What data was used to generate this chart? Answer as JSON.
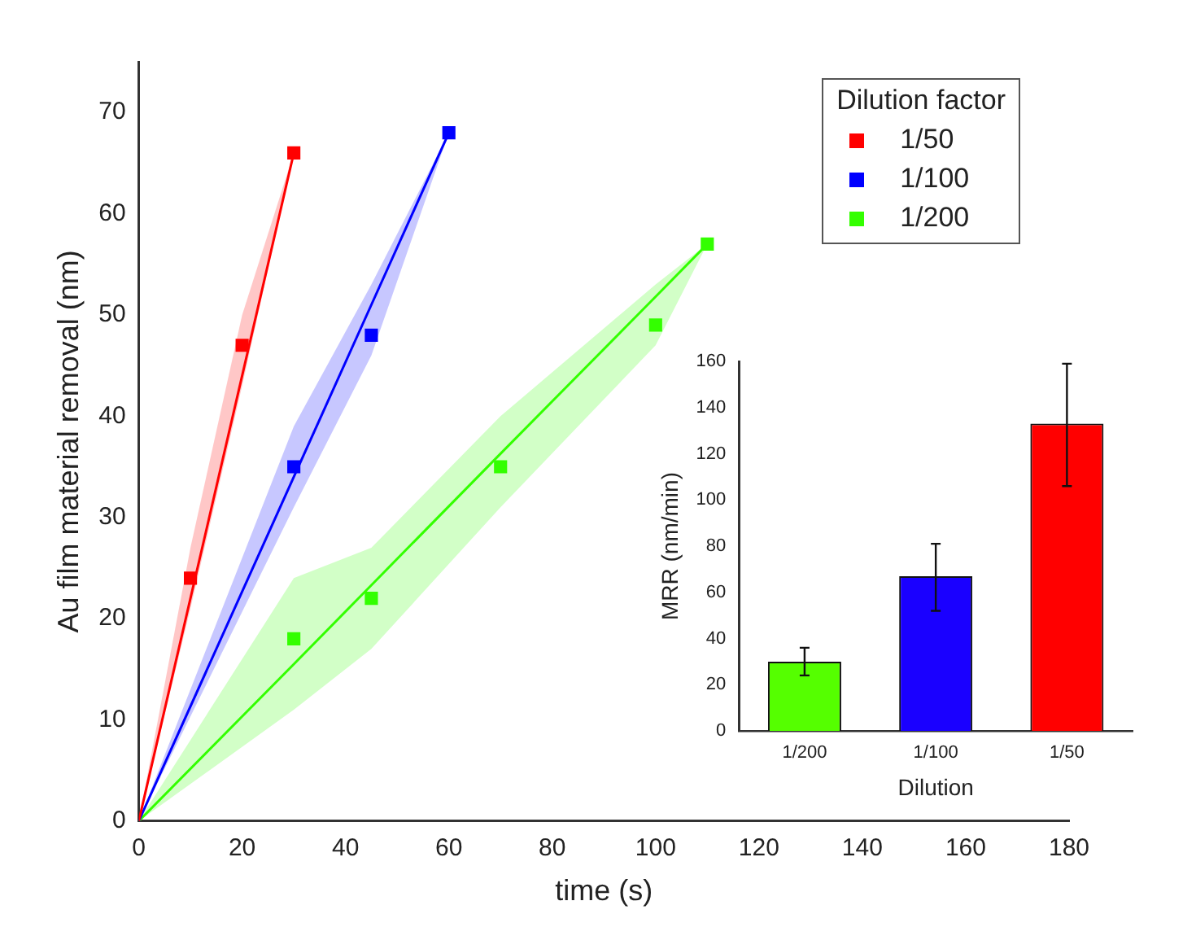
{
  "chart_data": [
    {
      "type": "scatter",
      "xlabel": "time (s)",
      "ylabel": "Au film material removal (nm)",
      "legend_title": "Dilution factor",
      "legend": "top right",
      "marker": "square",
      "grid": false,
      "xlim": [
        0,
        180
      ],
      "xticks": [
        0,
        20,
        40,
        60,
        80,
        100,
        120,
        140,
        160,
        180
      ],
      "ylim": [
        0,
        75
      ],
      "yticks": [
        0,
        10,
        20,
        30,
        40,
        50,
        60,
        70
      ],
      "series": [
        {
          "name": "1/50",
          "color": "#ff0000",
          "x": [
            10,
            20,
            30
          ],
          "values": [
            24,
            47,
            66
          ]
        },
        {
          "name": "1/100",
          "color": "#0000ff",
          "x": [
            30,
            45,
            60
          ],
          "values": [
            35,
            48,
            68
          ]
        },
        {
          "name": "1/200",
          "color": "#33ff00",
          "x": [
            30,
            45,
            70,
            100,
            110
          ],
          "values": [
            18,
            22,
            35,
            49,
            57
          ]
        },
        {
          "type": "line",
          "marker": "none",
          "color": "#ff0000",
          "x": [
            0,
            10,
            20,
            30
          ],
          "values": [
            0,
            22,
            44,
            66
          ],
          "lower": [
            0,
            21,
            43,
            66
          ],
          "upper": [
            0,
            27,
            50,
            66
          ]
        },
        {
          "type": "line",
          "marker": "none",
          "color": "#0000ff",
          "x": [
            0,
            30,
            45,
            60
          ],
          "values": [
            0,
            34,
            51,
            68
          ],
          "lower": [
            0,
            31,
            46,
            68
          ],
          "upper": [
            0,
            39,
            53,
            68
          ]
        },
        {
          "type": "line",
          "marker": "none",
          "color": "#33ff00",
          "x": [
            0,
            30,
            45,
            70,
            100,
            110
          ],
          "values": [
            0,
            15.5,
            23.3,
            36.3,
            51.8,
            57
          ],
          "lower": [
            0,
            11,
            17,
            31,
            47,
            57
          ],
          "upper": [
            0,
            24,
            27,
            40,
            53,
            57
          ]
        }
      ]
    },
    {
      "type": "bar",
      "xlabel": "Dilution",
      "ylabel": "MRR (nm/min)",
      "categories": [
        "1/200",
        "1/100",
        "1/50"
      ],
      "values": [
        30,
        67,
        133
      ],
      "colors": [
        "#55ff00",
        "#1a00ff",
        "#ff0000"
      ],
      "errors": [
        [
          24,
          36
        ],
        [
          52,
          81
        ],
        [
          106,
          159
        ]
      ],
      "ylim": [
        0,
        160
      ],
      "yticks": [
        0,
        20,
        40,
        60,
        80,
        100,
        120,
        140,
        160
      ],
      "grid": false
    }
  ]
}
